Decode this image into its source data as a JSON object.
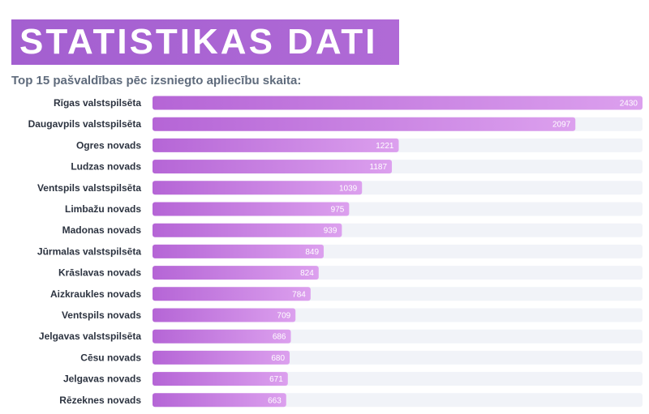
{
  "header": {
    "title": "STATISTIKAS DATI",
    "subtitle": "Top 15 pašvaldības pēc izsniegto apliecību skaita:"
  },
  "colors": {
    "banner": "#a35fd0",
    "bar_start": "#b565d6",
    "bar_end": "#dca0ee",
    "track": "#f1f3f8",
    "value_text": "#ffffff"
  },
  "chart_data": {
    "type": "bar",
    "orientation": "horizontal",
    "categories": [
      "Rīgas valstspilsēta",
      "Daugavpils valstspilsēta",
      "Ogres novads",
      "Ludzas novads",
      "Ventspils valstspilsēta",
      "Limbažu novads",
      "Madonas novads",
      "Jūrmalas valstspilsēta",
      "Krāslavas novads",
      "Aizkraukles novads",
      "Ventspils novads",
      "Jelgavas valstspilsēta",
      "Cēsu novads",
      "Jelgavas novads",
      "Rēzeknes novads"
    ],
    "values": [
      2430,
      2097,
      1221,
      1187,
      1039,
      975,
      939,
      849,
      824,
      784,
      709,
      686,
      680,
      671,
      663
    ],
    "xlim": [
      0,
      2430
    ],
    "grid": false,
    "legend": "none"
  }
}
